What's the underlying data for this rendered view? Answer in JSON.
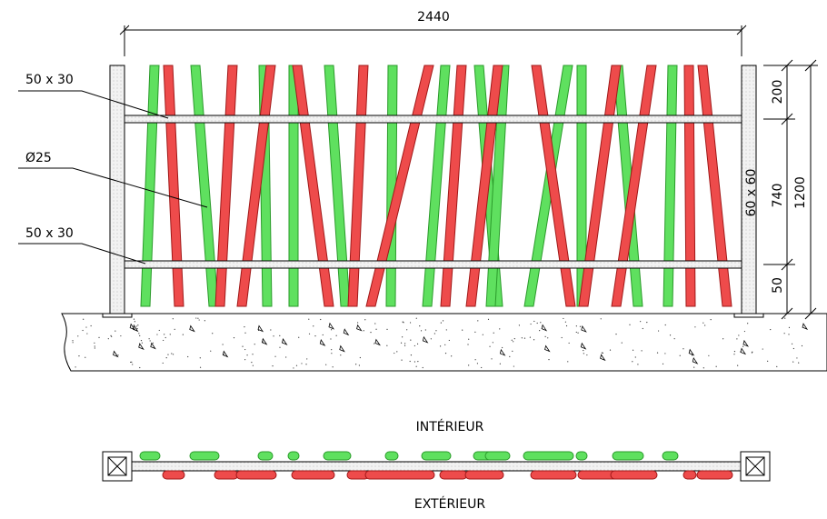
{
  "dimensions": {
    "total_length": "2440",
    "segment_heights": [
      "200",
      "740",
      "50"
    ],
    "total_height": "1200",
    "post_section": "60 x 60"
  },
  "callouts": [
    "50 x 30",
    "Ø25",
    "50 x 30"
  ],
  "plan": {
    "inside": "INTÉRIEUR",
    "outside": "EXTÉRIEUR"
  }
}
